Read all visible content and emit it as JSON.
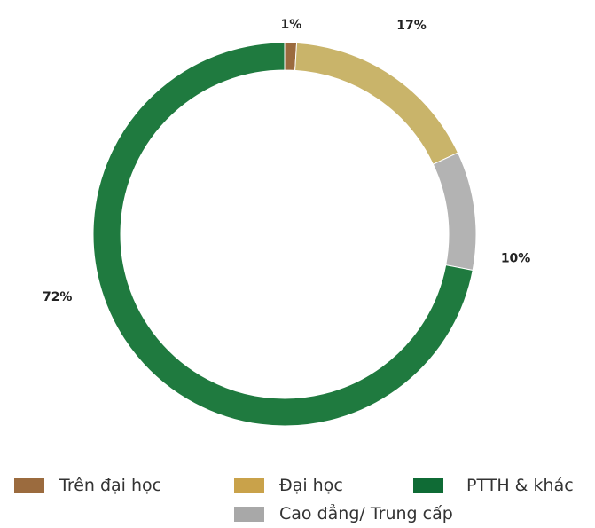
{
  "chart_data": {
    "type": "pie",
    "donut": true,
    "title": "",
    "series": [
      {
        "name": "Trên đại học",
        "value": 1,
        "label": "1%",
        "color": "#9b6b3e"
      },
      {
        "name": "Đại học",
        "value": 17,
        "label": "17%",
        "color": "#c9b46a"
      },
      {
        "name": "Cao đẳng/ Trung cấp",
        "value": 10,
        "label": "10%",
        "color": "#b3b3b3"
      },
      {
        "name": "PTTH & khác",
        "value": 72,
        "label": "72%",
        "color": "#1f7a3f"
      }
    ],
    "legend": {
      "placement": "bottom",
      "items": [
        {
          "label": "Trên đại học",
          "color": "#9b6b3e"
        },
        {
          "label": "Đại học",
          "color": "#c9a24a"
        },
        {
          "label": "PTTH & khác",
          "color": "#0f6b35"
        },
        {
          "label": "Cao đẳng/ Trung cấp",
          "color": "#a8a8a8"
        }
      ]
    }
  }
}
